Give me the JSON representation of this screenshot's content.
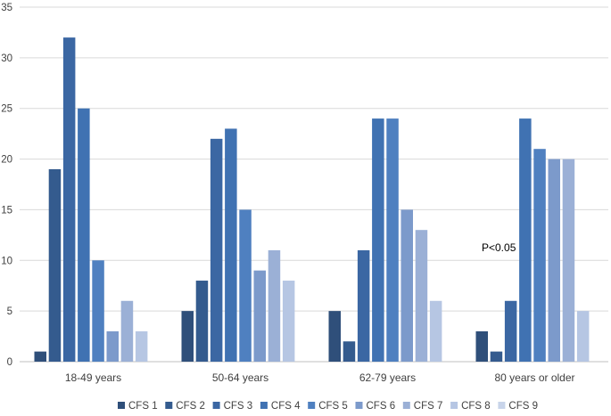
{
  "chart_data": {
    "type": "bar",
    "categories": [
      "18-49 years",
      "50-64 years",
      "62-79 years",
      "80 years or older"
    ],
    "series": [
      {
        "name": "CFS 1",
        "values": [
          1,
          5,
          5,
          3
        ],
        "color": "#2f4f7a"
      },
      {
        "name": "CFS 2",
        "values": [
          19,
          8,
          2,
          1
        ],
        "color": "#345b8e"
      },
      {
        "name": "CFS 3",
        "values": [
          32,
          22,
          11,
          6
        ],
        "color": "#3b67a3"
      },
      {
        "name": "CFS 4",
        "values": [
          25,
          23,
          24,
          24
        ],
        "color": "#4072b2"
      },
      {
        "name": "CFS 5",
        "values": [
          10,
          15,
          24,
          21
        ],
        "color": "#4f80c0"
      },
      {
        "name": "CFS 6",
        "values": [
          3,
          9,
          15,
          20
        ],
        "color": "#7c9acb"
      },
      {
        "name": "CFS 7",
        "values": [
          6,
          11,
          13,
          20
        ],
        "color": "#9bb0d6"
      },
      {
        "name": "CFS 8",
        "values": [
          3,
          8,
          6,
          5
        ],
        "color": "#b6c6e3"
      },
      {
        "name": "CFS 9",
        "values": [
          null,
          null,
          null,
          null
        ],
        "color": "#c8d4ea"
      }
    ],
    "ylim": [
      0,
      35
    ],
    "yticks": [
      0,
      5,
      10,
      15,
      20,
      25,
      30,
      35
    ],
    "grid": true,
    "legend": "bottom",
    "annotations": [
      {
        "text": "P<0.05",
        "category": "80 years or older",
        "y": 11
      }
    ],
    "title": "",
    "xlabel": "",
    "ylabel": ""
  }
}
